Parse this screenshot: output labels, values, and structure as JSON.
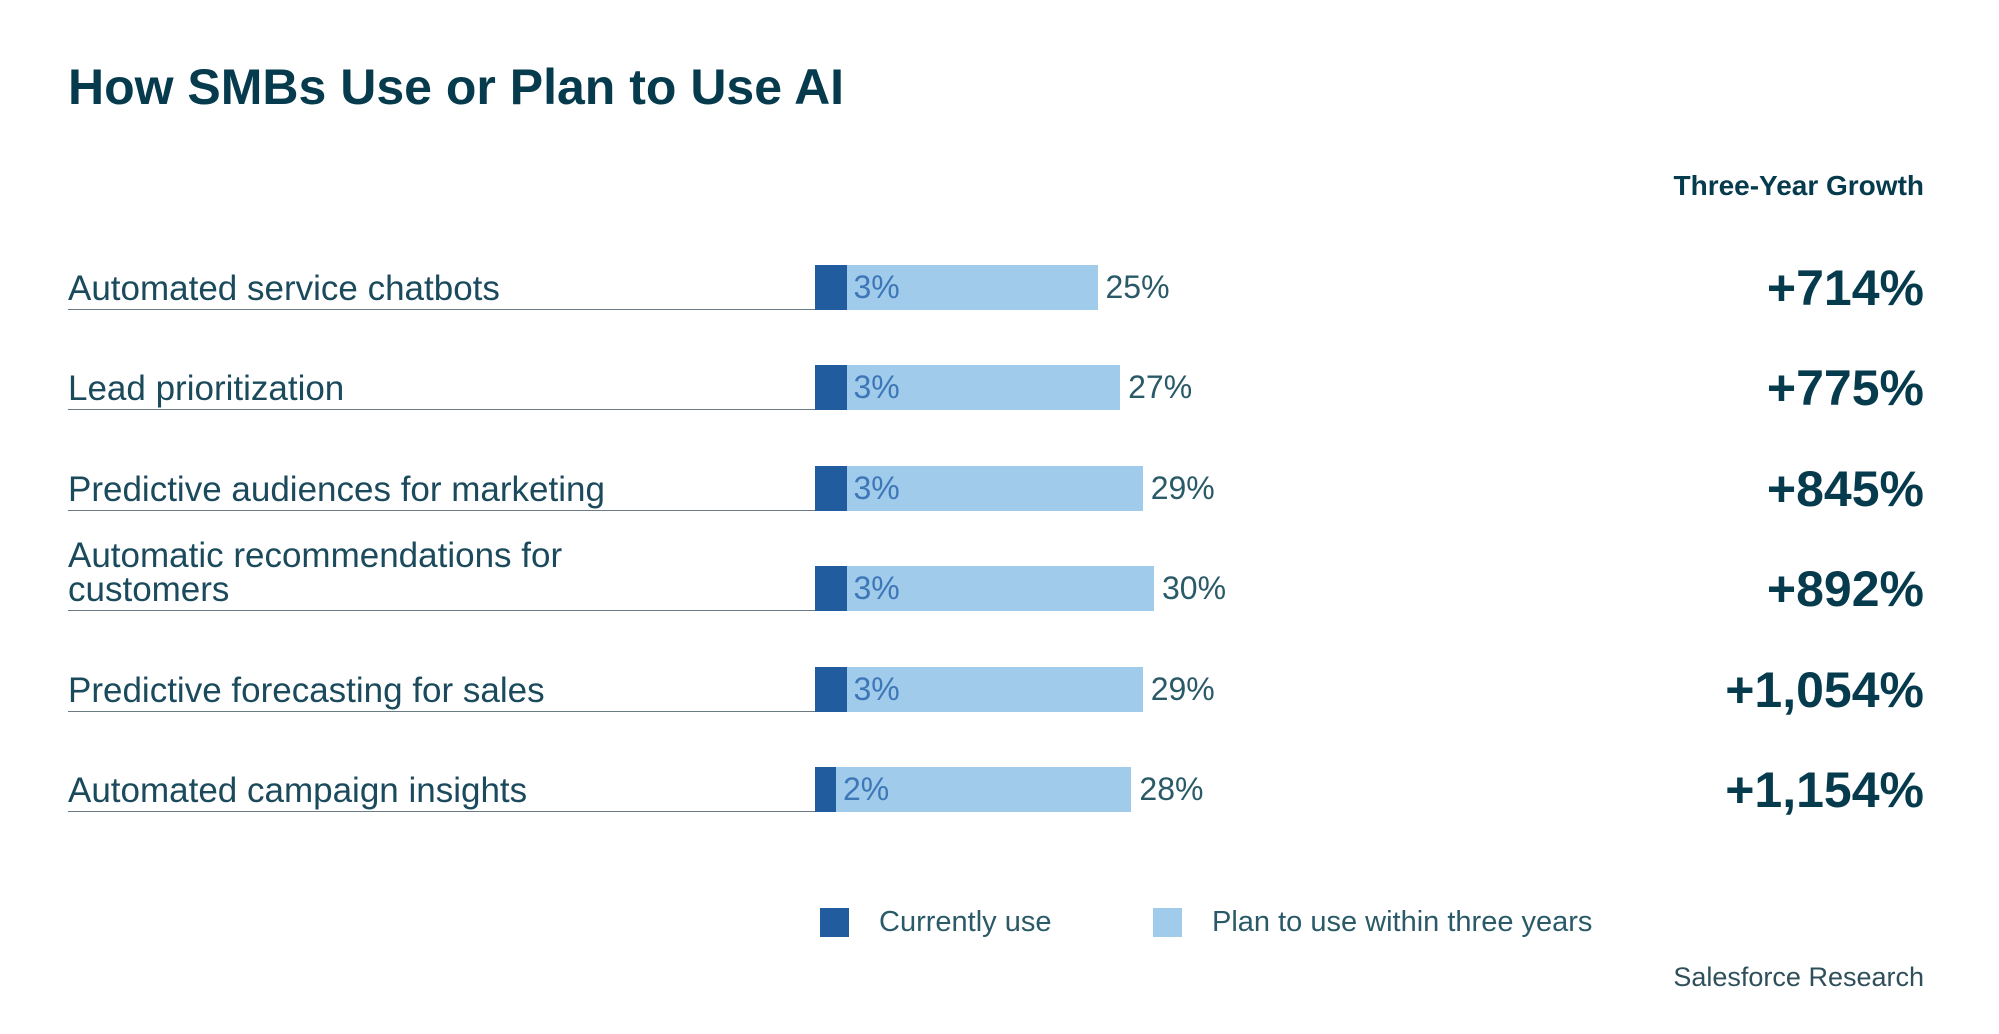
{
  "title": "How SMBs Use or Plan to Use AI",
  "growth_header": "Three-Year Growth",
  "source": "Salesforce Research",
  "colors": {
    "currently_use": "#215d9e",
    "plan_to_use": "#a0cbeb"
  },
  "chart_data": {
    "type": "bar",
    "orientation": "horizontal",
    "title": "How SMBs Use or Plan to Use AI",
    "categories": [
      "Automated service chatbots",
      "Lead prioritization",
      "Predictive audiences for marketing",
      "Automatic recommendations for customers",
      "Predictive forecasting for sales",
      "Automated campaign insights"
    ],
    "series": [
      {
        "name": "Currently use",
        "values": [
          3,
          3,
          3,
          3,
          3,
          2
        ],
        "labels": [
          "3%",
          "3%",
          "3%",
          "3%",
          "3%",
          "2%"
        ]
      },
      {
        "name": "Plan to use within three years",
        "values": [
          25,
          27,
          29,
          30,
          29,
          28
        ],
        "labels": [
          "25%",
          "27%",
          "29%",
          "30%",
          "29%",
          "28%"
        ]
      }
    ],
    "growth_header": "Three-Year Growth",
    "growth": [
      "+714%",
      "+775%",
      "+845%",
      "+892%",
      "+1,054%",
      "+1,154%"
    ],
    "legend": [
      "Currently use",
      "Plan to use within three years"
    ],
    "legend_position": "bottom",
    "grid": false
  }
}
